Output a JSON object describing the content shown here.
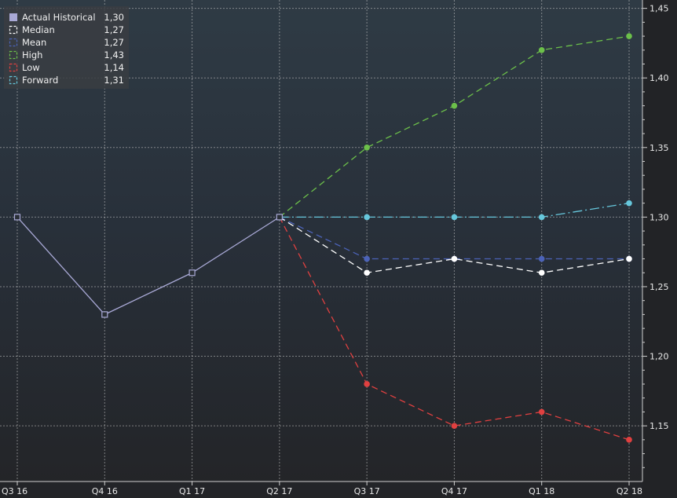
{
  "chart_data": {
    "type": "line",
    "title": "",
    "xlabel": "",
    "ylabel": "",
    "categories": [
      "Q3 16",
      "Q4 16",
      "Q1 17",
      "Q2 17",
      "Q3 17",
      "Q4 17",
      "Q1 18",
      "Q2 18"
    ],
    "y_ticks": [
      "1,15",
      "1,20",
      "1,25",
      "1,30",
      "1,35",
      "1,40",
      "1,45"
    ],
    "y_tick_values": [
      1.15,
      1.2,
      1.25,
      1.3,
      1.35,
      1.4,
      1.45
    ],
    "ylim": [
      1.11,
      1.456
    ],
    "grid": true,
    "legend_position": "top-left",
    "series": [
      {
        "name": "Actual Historical",
        "legend_value": "1,30",
        "color": "#a9a9d6",
        "style": "solid",
        "marker": "hollow-square",
        "values": [
          1.3,
          1.23,
          1.26,
          1.3,
          null,
          null,
          null,
          null
        ]
      },
      {
        "name": "Median",
        "legend_value": "1,27",
        "color": "#ffffff",
        "style": "dashed",
        "marker": "dot",
        "values": [
          null,
          null,
          null,
          1.3,
          1.26,
          1.27,
          1.26,
          1.27
        ]
      },
      {
        "name": "Mean",
        "legend_value": "1,27",
        "color": "#4c63b8",
        "style": "dashed",
        "marker": "dot",
        "values": [
          null,
          null,
          null,
          1.3,
          1.27,
          1.27,
          1.27,
          1.27
        ]
      },
      {
        "name": "High",
        "legend_value": "1,43",
        "color": "#6cc04a",
        "style": "dashed",
        "marker": "dot",
        "values": [
          null,
          null,
          null,
          1.3,
          1.35,
          1.38,
          1.42,
          1.43
        ]
      },
      {
        "name": "Low",
        "legend_value": "1,14",
        "color": "#e04040",
        "style": "dashed",
        "marker": "dot",
        "values": [
          null,
          null,
          null,
          1.3,
          1.18,
          1.15,
          1.16,
          1.14
        ]
      },
      {
        "name": "Forward",
        "legend_value": "1,31",
        "color": "#66c7dc",
        "style": "dashdot",
        "marker": "dot",
        "values": [
          null,
          null,
          null,
          1.3,
          1.3,
          1.3,
          1.3,
          1.31
        ]
      }
    ]
  }
}
